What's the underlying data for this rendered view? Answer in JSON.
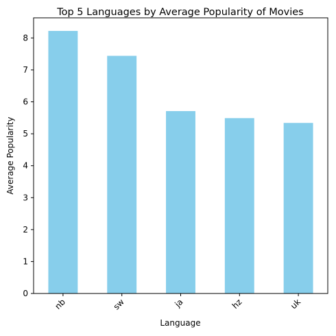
{
  "chart_data": {
    "type": "bar",
    "title": "Top 5 Languages by Average Popularity of Movies",
    "xlabel": "Language",
    "ylabel": "Average Popularity",
    "categories": [
      "nb",
      "sw",
      "ja",
      "hz",
      "uk"
    ],
    "values": [
      8.22,
      7.44,
      5.71,
      5.49,
      5.34
    ],
    "ylim": [
      0,
      8.63
    ],
    "yticks": [
      "0",
      "1",
      "2",
      "3",
      "4",
      "5",
      "6",
      "7",
      "8"
    ],
    "grid": false,
    "legend": "none",
    "bar_color": "#87CEEB"
  }
}
